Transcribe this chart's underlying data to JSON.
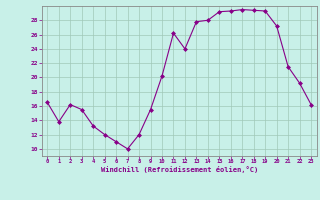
{
  "x": [
    0,
    1,
    2,
    3,
    4,
    5,
    6,
    7,
    8,
    9,
    10,
    11,
    12,
    13,
    14,
    15,
    16,
    17,
    18,
    19,
    20,
    21,
    22,
    23
  ],
  "y": [
    16.5,
    13.8,
    16.2,
    15.5,
    13.2,
    12.0,
    11.0,
    10.0,
    12.0,
    15.5,
    20.2,
    26.2,
    24.0,
    27.8,
    28.0,
    29.2,
    29.3,
    29.5,
    29.4,
    29.3,
    27.2,
    21.5,
    19.2,
    16.2
  ],
  "xlabel": "Windchill (Refroidissement éolien,°C)",
  "ylim": [
    9,
    30
  ],
  "xlim": [
    -0.5,
    23.5
  ],
  "yticks": [
    10,
    12,
    14,
    16,
    18,
    20,
    22,
    24,
    26,
    28
  ],
  "xticks": [
    0,
    1,
    2,
    3,
    4,
    5,
    6,
    7,
    8,
    9,
    10,
    11,
    12,
    13,
    14,
    15,
    16,
    17,
    18,
    19,
    20,
    21,
    22,
    23
  ],
  "line_color": "#880088",
  "marker_color": "#880088",
  "bg_color": "#c8f0e8",
  "grid_color": "#a0c8b8",
  "axis_color": "#888888",
  "label_color": "#880088",
  "tick_color": "#880088"
}
